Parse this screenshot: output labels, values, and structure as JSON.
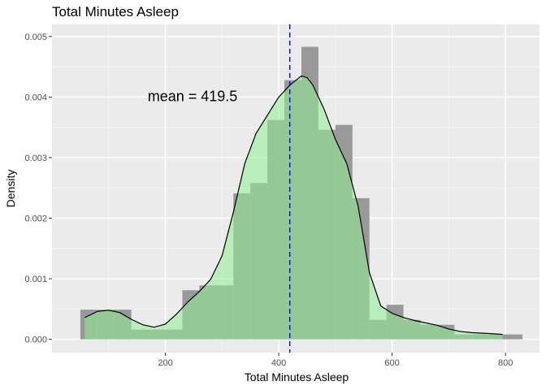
{
  "chart_data": {
    "type": "histogram-density",
    "title": "Total Minutes Asleep",
    "xlabel": "Total Minutes Asleep",
    "ylabel": "Density",
    "xlim": [
      0,
      860
    ],
    "ylim": [
      -0.00022,
      0.0052
    ],
    "x_ticks": [
      200,
      400,
      600,
      800
    ],
    "x_tick_labels": [
      "200",
      "400",
      "600",
      "800"
    ],
    "y_ticks": [
      0,
      0.001,
      0.002,
      0.003,
      0.004,
      0.005
    ],
    "y_tick_labels": [
      "0.000",
      "0.001",
      "0.002",
      "0.003",
      "0.004",
      "0.005"
    ],
    "grid": true,
    "histogram": {
      "bin_width": 30,
      "bins": [
        {
          "x0": 50,
          "x1": 80,
          "density": 0.00049
        },
        {
          "x0": 80,
          "x1": 110,
          "density": 0.00049
        },
        {
          "x0": 110,
          "x1": 140,
          "density": 0.00049
        },
        {
          "x0": 140,
          "x1": 170,
          "density": 0.00016
        },
        {
          "x0": 170,
          "x1": 200,
          "density": 0.00016
        },
        {
          "x0": 200,
          "x1": 230,
          "density": 0.00016
        },
        {
          "x0": 230,
          "x1": 260,
          "density": 0.00081
        },
        {
          "x0": 260,
          "x1": 290,
          "density": 0.00089
        },
        {
          "x0": 290,
          "x1": 320,
          "density": 0.00089
        },
        {
          "x0": 320,
          "x1": 350,
          "density": 0.00241
        },
        {
          "x0": 350,
          "x1": 380,
          "density": 0.00258
        },
        {
          "x0": 380,
          "x1": 410,
          "density": 0.00362
        },
        {
          "x0": 410,
          "x1": 440,
          "density": 0.00428
        },
        {
          "x0": 440,
          "x1": 470,
          "density": 0.00483
        },
        {
          "x0": 470,
          "x1": 500,
          "density": 0.00346
        },
        {
          "x0": 500,
          "x1": 530,
          "density": 0.00354
        },
        {
          "x0": 530,
          "x1": 560,
          "density": 0.00233
        },
        {
          "x0": 560,
          "x1": 590,
          "density": 0.00032
        },
        {
          "x0": 590,
          "x1": 620,
          "density": 0.00057
        },
        {
          "x0": 620,
          "x1": 650,
          "density": 0.00032
        },
        {
          "x0": 650,
          "x1": 680,
          "density": 0.00024
        },
        {
          "x0": 680,
          "x1": 710,
          "density": 0.00024
        },
        {
          "x0": 710,
          "x1": 740,
          "density": 8e-05
        },
        {
          "x0": 740,
          "x1": 770,
          "density": 8e-05
        },
        {
          "x0": 770,
          "x1": 800,
          "density": 8e-05
        },
        {
          "x0": 800,
          "x1": 830,
          "density": 8e-05
        }
      ],
      "fill_color": "#999999"
    },
    "density_curve": {
      "x": [
        58,
        80,
        100,
        120,
        140,
        160,
        180,
        200,
        220,
        240,
        260,
        280,
        300,
        320,
        340,
        360,
        380,
        400,
        420,
        440,
        450,
        460,
        480,
        500,
        520,
        540,
        560,
        580,
        600,
        620,
        640,
        660,
        680,
        700,
        720,
        740,
        760,
        780,
        795
      ],
      "y": [
        0.00036,
        0.00046,
        0.00048,
        0.00044,
        0.00033,
        0.00024,
        0.0002,
        0.00025,
        0.00042,
        0.00062,
        0.00079,
        0.00099,
        0.00138,
        0.0021,
        0.0029,
        0.0034,
        0.0037,
        0.004,
        0.0042,
        0.00435,
        0.00432,
        0.0042,
        0.0038,
        0.0033,
        0.0029,
        0.0022,
        0.0011,
        0.00055,
        0.00043,
        0.00036,
        0.00031,
        0.00027,
        0.00023,
        0.00017,
        0.00013,
        0.00011,
        0.0001,
        9e-05,
        8e-05
      ],
      "fill_color": "#90ee90",
      "line_color": "#000000"
    },
    "mean_line": {
      "x": 419.5,
      "color": "#0000ff",
      "style": "dashed"
    },
    "annotations": [
      {
        "text": "mean = 419.5",
        "x": 248,
        "y": 0.00393
      }
    ]
  }
}
